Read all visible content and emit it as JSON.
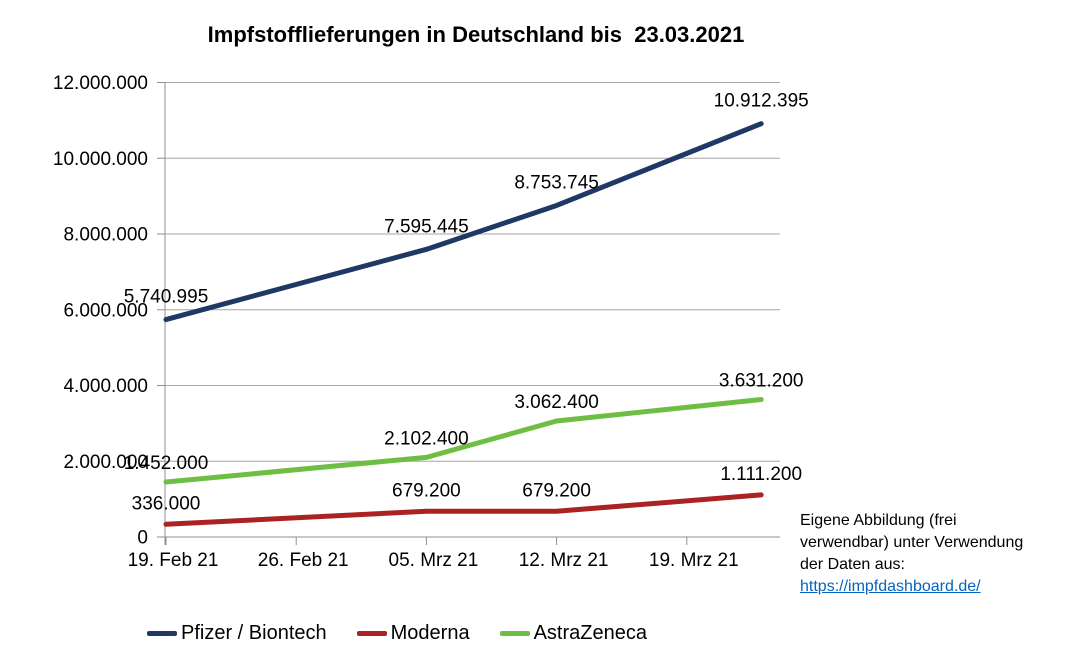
{
  "title": "Impfstofflieferungen in Deutschland bis  23.03.2021",
  "chart_data": {
    "type": "line",
    "title": "Impfstofflieferungen in Deutschland bis  23.03.2021",
    "grid": true,
    "legend_position": "bottom",
    "x_axis": {
      "type": "date",
      "tick_labels": [
        "19. Feb 21",
        "26. Feb 21",
        "05. Mrz 21",
        "12. Mrz 21",
        "19. Mrz 21"
      ],
      "tick_dates": [
        "19.02.2021",
        "26.02.2021",
        "05.03.2021",
        "12.03.2021",
        "19.03.2021"
      ]
    },
    "y_axis": {
      "min": 0,
      "max": 12000000,
      "step": 2000000,
      "tick_labels": [
        "0",
        "2.000.000",
        "4.000.000",
        "6.000.000",
        "8.000.000",
        "10.000.000",
        "12.000.000"
      ]
    },
    "points_dates": [
      "19.02.2021",
      "05.03.2021",
      "12.03.2021",
      "23.03.2021"
    ],
    "series": [
      {
        "name": "Pfizer / Biontech",
        "color": "#1f3864",
        "values": [
          5740995,
          7595445,
          8753745,
          10912395
        ],
        "data_labels": [
          "5.740.995",
          "7.595.445",
          "8.753.745",
          "10.912.395"
        ]
      },
      {
        "name": "Moderna",
        "color": "#aa2222",
        "values": [
          336000,
          679200,
          679200,
          1111200
        ],
        "data_labels": [
          "336.000",
          "679.200",
          "679.200",
          "1.111.200"
        ]
      },
      {
        "name": "AstraZeneca",
        "color": "#6fbe44",
        "values": [
          1452000,
          2102400,
          3062400,
          3631200
        ],
        "data_labels": [
          "1.452.000",
          "2.102.400",
          "3.062.400",
          "3.631.200"
        ]
      }
    ]
  },
  "annotation": {
    "lines": [
      "Eigene Abbildung (frei",
      "verwendbar) unter Verwendung",
      "der Daten aus:"
    ],
    "link_text": "https://impfdashboard.de/"
  },
  "style": {
    "gridline_color": "#a6a6a6",
    "axis_color": "#8f8f8f"
  }
}
